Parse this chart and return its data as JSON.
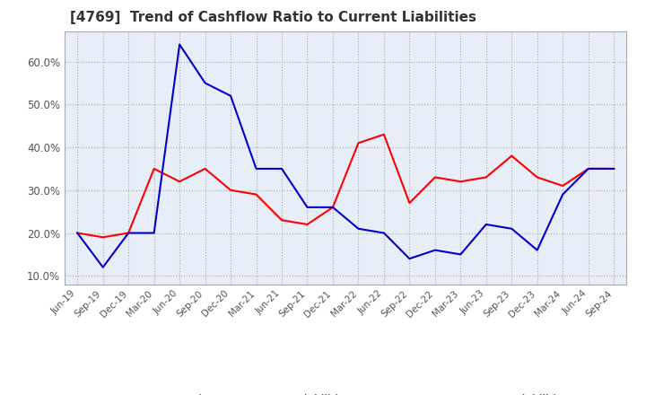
{
  "title": "[4769]  Trend of Cashflow Ratio to Current Liabilities",
  "title_fontsize": 11,
  "title_color": "#333333",
  "x_labels": [
    "Jun-19",
    "Sep-19",
    "Dec-19",
    "Mar-20",
    "Jun-20",
    "Sep-20",
    "Dec-20",
    "Mar-21",
    "Jun-21",
    "Sep-21",
    "Dec-21",
    "Mar-22",
    "Jun-22",
    "Sep-22",
    "Dec-22",
    "Mar-23",
    "Jun-23",
    "Sep-23",
    "Dec-23",
    "Mar-24",
    "Jun-24",
    "Sep-24"
  ],
  "operating_cf": [
    0.2,
    0.19,
    0.2,
    0.35,
    0.32,
    0.35,
    0.3,
    0.29,
    0.23,
    0.22,
    0.26,
    0.41,
    0.43,
    0.27,
    0.33,
    0.32,
    0.33,
    0.38,
    0.33,
    0.31,
    0.35,
    0.35
  ],
  "free_cf": [
    0.2,
    0.12,
    0.2,
    0.2,
    0.64,
    0.55,
    0.52,
    0.35,
    0.35,
    0.26,
    0.26,
    0.21,
    0.2,
    0.14,
    0.16,
    0.15,
    0.22,
    0.21,
    0.16,
    0.29,
    0.35,
    0.35
  ],
  "operating_color": "#ff0000",
  "free_color": "#0000cc",
  "ylim": [
    0.08,
    0.67
  ],
  "yticks": [
    0.1,
    0.2,
    0.3,
    0.4,
    0.5,
    0.6
  ],
  "plot_bg_color": "#e8eef8",
  "background_color": "#ffffff",
  "grid_color": "#aaaaaa",
  "legend_labels": [
    "Operating CF to Current Liabilities",
    "Free CF to Current Liabilities"
  ]
}
